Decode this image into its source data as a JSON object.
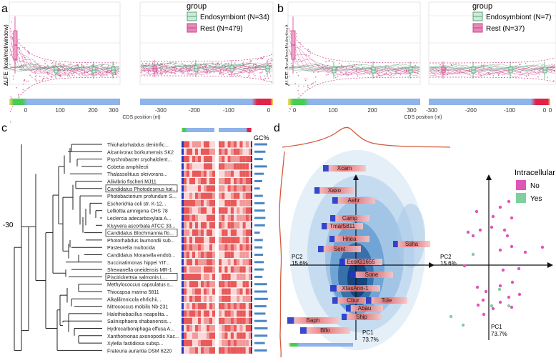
{
  "colors": {
    "endosymbiont": "#5aa47a",
    "endosymbiont_fill": "#cfe9d8",
    "rest": "#cf3f8a",
    "rest_fill": "#f0a3c9",
    "heat_red": "#e2404a",
    "heat_pale": "#fbe2e2",
    "heat_blue": "#2335c8",
    "bar_blue": "#4a86c5",
    "strip_blue": "#8fb3ea",
    "strip_green": "#44cc55",
    "strip_red": "#e0234a",
    "strip_yellow": "#f7dc5a",
    "density": "#4a90c8",
    "marginal": "#d4583a",
    "no_point": "#e055b8",
    "yes_point": "#7fcf9f"
  },
  "panels": {
    "a": {
      "letter": "a",
      "ylabel": "ΔLFE (kcal/mol/window)",
      "xlabel": "CDS position (nt)",
      "left_ticks": [
        "0",
        "100",
        "200",
        "300"
      ],
      "right_ticks": [
        "-300",
        "-200",
        "-100",
        "0"
      ],
      "legend_title": "group",
      "legend_items": [
        {
          "label": "Endosymbiont (N=34)",
          "key": "endosymbiont"
        },
        {
          "label": "Rest (N=479)",
          "key": "rest"
        }
      ]
    },
    "b": {
      "letter": "b",
      "ylabel": "ΔLFE (kcal/mol/window)",
      "xlabel": "CDS position (nt)",
      "left_ticks": [
        "0",
        "100",
        "200",
        "300"
      ],
      "right_ticks": [
        "-300",
        "-200",
        "-100",
        "0",
        "0"
      ],
      "legend_title": "group",
      "legend_items": [
        {
          "label": "Endosymbiont (N=7)",
          "key": "endosymbiont"
        },
        {
          "label": "Rest (N=37)",
          "key": "rest"
        }
      ]
    },
    "c": {
      "letter": "c",
      "axis_label": "-30",
      "gc_label": "GC%",
      "species": [
        {
          "name": "Thiohalorhabdus denitrific...",
          "boxed": false,
          "gc": 0.64
        },
        {
          "name": "Alcanivorax borkumensis SK2",
          "boxed": false,
          "gc": 0.55
        },
        {
          "name": "Psychrobacter cryohalolent...",
          "boxed": false,
          "gc": 0.42
        },
        {
          "name": "Cobetia amphilecti",
          "boxed": false,
          "gc": 0.63
        },
        {
          "name": "Thalassolituus oleivorans...",
          "boxed": false,
          "gc": 0.47
        },
        {
          "name": "Aliivibrio fischeri MJ11",
          "boxed": false,
          "gc": 0.39
        },
        {
          "name": "Candidatus Photodesmus kat...",
          "boxed": true,
          "gc": 0.27
        },
        {
          "name": "Photobacterium profundum S...",
          "boxed": false,
          "gc": 0.42
        },
        {
          "name": "Escherichia coli str. K-12...",
          "boxed": false,
          "gc": 0.51
        },
        {
          "name": "Lelliottia amnigena CHS 78",
          "boxed": false,
          "gc": 0.53
        },
        {
          "name": "Leclercia adecarboxylata A...",
          "boxed": false,
          "gc": 0.55
        },
        {
          "name": "Kluyvera ascorbata ATCC 33...",
          "boxed": false,
          "gc": 0.53
        },
        {
          "name": "Candidatus Blochmannia flo...",
          "boxed": true,
          "gc": 0.27
        },
        {
          "name": "Photorhabdus laumondii sub...",
          "boxed": false,
          "gc": 0.42
        },
        {
          "name": "Pasteurella multocida",
          "boxed": false,
          "gc": 0.4
        },
        {
          "name": "Candidatus Moranella endob...",
          "boxed": false,
          "gc": 0.43
        },
        {
          "name": "Succinatimonas hippei YIT...",
          "boxed": false,
          "gc": 0.47
        },
        {
          "name": "Shewanella oneidensis MR-1",
          "boxed": false,
          "gc": 0.46
        },
        {
          "name": "Piscirickettsia salmonis L...",
          "boxed": true,
          "gc": 0.4
        },
        {
          "name": "Methylococcus capsulatus s...",
          "boxed": false,
          "gc": 0.63
        },
        {
          "name": "Thiocapsa marina 5811",
          "boxed": false,
          "gc": 0.64
        },
        {
          "name": "Alkalilimnicola ehrlichii...",
          "boxed": false,
          "gc": 0.67
        },
        {
          "name": "Nitrococcus mobilis Nb-231",
          "boxed": false,
          "gc": 0.6
        },
        {
          "name": "Halothiobacillus neapolita...",
          "boxed": false,
          "gc": 0.55
        },
        {
          "name": "Salinisphaera shabanensis...",
          "boxed": false,
          "gc": 0.62
        },
        {
          "name": "Hydrocarboniphaga effusa A...",
          "boxed": false,
          "gc": 0.66
        },
        {
          "name": "Xanthomonas axonopodis Xac...",
          "boxed": false,
          "gc": 0.65
        },
        {
          "name": "Xylella fastidiosa subsp...",
          "boxed": false,
          "gc": 0.52
        },
        {
          "name": "Frateuria aurantia DSM 6220",
          "boxed": false,
          "gc": 0.63
        }
      ]
    },
    "d": {
      "letter": "d",
      "pc2_label": "PC2",
      "pc2_value": "15.6%",
      "pc1_label": "PC1",
      "pc1_value": "73.7%",
      "legend_title": "Intracellular",
      "legend_items": [
        {
          "label": "No",
          "key": "no_point"
        },
        {
          "label": "Yes",
          "key": "yes_point"
        }
      ],
      "species_labels": [
        "Xcam",
        "Xaxo",
        "Aehr",
        "Camp",
        "Tmar5811",
        "Hnea",
        "Ssha",
        "Sent",
        "EcolG1655",
        "Sone",
        "XfasAnn-1",
        "Cbur",
        "Tole",
        "Abau",
        "Ship",
        "Baph",
        "Bflo"
      ]
    }
  }
}
